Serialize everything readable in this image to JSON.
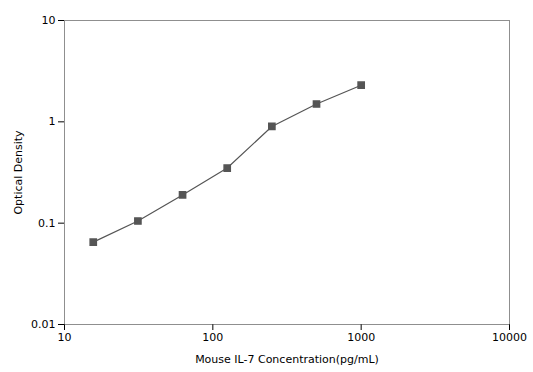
{
  "chart_data": {
    "type": "line",
    "x": [
      15.625,
      31.25,
      62.5,
      125,
      250,
      500,
      1000
    ],
    "values": [
      0.065,
      0.105,
      0.19,
      0.35,
      0.9,
      1.5,
      2.3
    ],
    "xlim": [
      10,
      10000
    ],
    "ylim": [
      0.01,
      10
    ],
    "xticks": [
      10,
      100,
      1000,
      10000
    ],
    "yticks": [
      0.01,
      0.1,
      1,
      10
    ],
    "xlabel": "Mouse IL-7 Concentration(pg/mL)",
    "ylabel": "Optical Density",
    "log": true,
    "color": "#555555",
    "marker": "square",
    "grid": false
  }
}
